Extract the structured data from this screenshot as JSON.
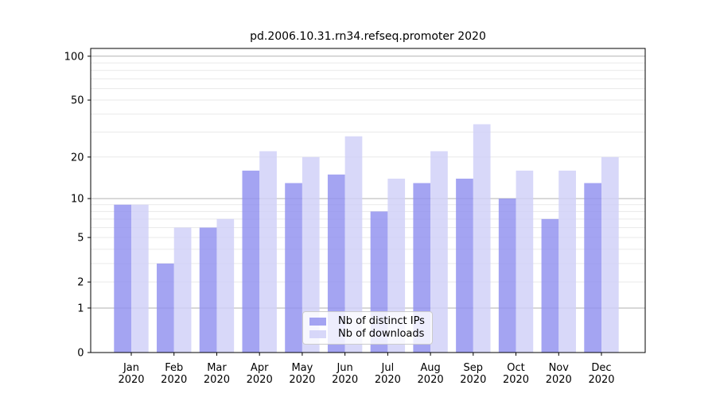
{
  "chart_data": {
    "type": "bar",
    "title": "pd.2006.10.31.rn34.refseq.promoter 2020",
    "categories": [
      "Jan 2020",
      "Feb 2020",
      "Mar 2020",
      "Apr 2020",
      "May 2020",
      "Jun 2020",
      "Jul 2020",
      "Aug 2020",
      "Sep 2020",
      "Oct 2020",
      "Nov 2020",
      "Dec 2020"
    ],
    "series": [
      {
        "name": "Nb of distinct IPs",
        "color": "#9090ef",
        "values": [
          9,
          3,
          6,
          16,
          13,
          15,
          8,
          13,
          14,
          10,
          7,
          13
        ]
      },
      {
        "name": "Nb of downloads",
        "color": "#cfcff8",
        "values": [
          9,
          6,
          7,
          22,
          20,
          28,
          14,
          22,
          34,
          16,
          16,
          20
        ]
      }
    ],
    "bar_opacity": 0.82,
    "yscale": "log1p",
    "ylim": [
      0,
      113
    ],
    "yticks": [
      0,
      1,
      2,
      5,
      10,
      20,
      50,
      100
    ],
    "grid": {
      "major": [
        1,
        10,
        100
      ],
      "minor": [
        2,
        3,
        4,
        5,
        6,
        7,
        8,
        9,
        20,
        30,
        40,
        50,
        60,
        70,
        80,
        90
      ],
      "major_color": "#b2b2b2",
      "minor_color": "#e9e9e9"
    },
    "legend_position": "lower center",
    "xlabel": "",
    "ylabel": ""
  }
}
